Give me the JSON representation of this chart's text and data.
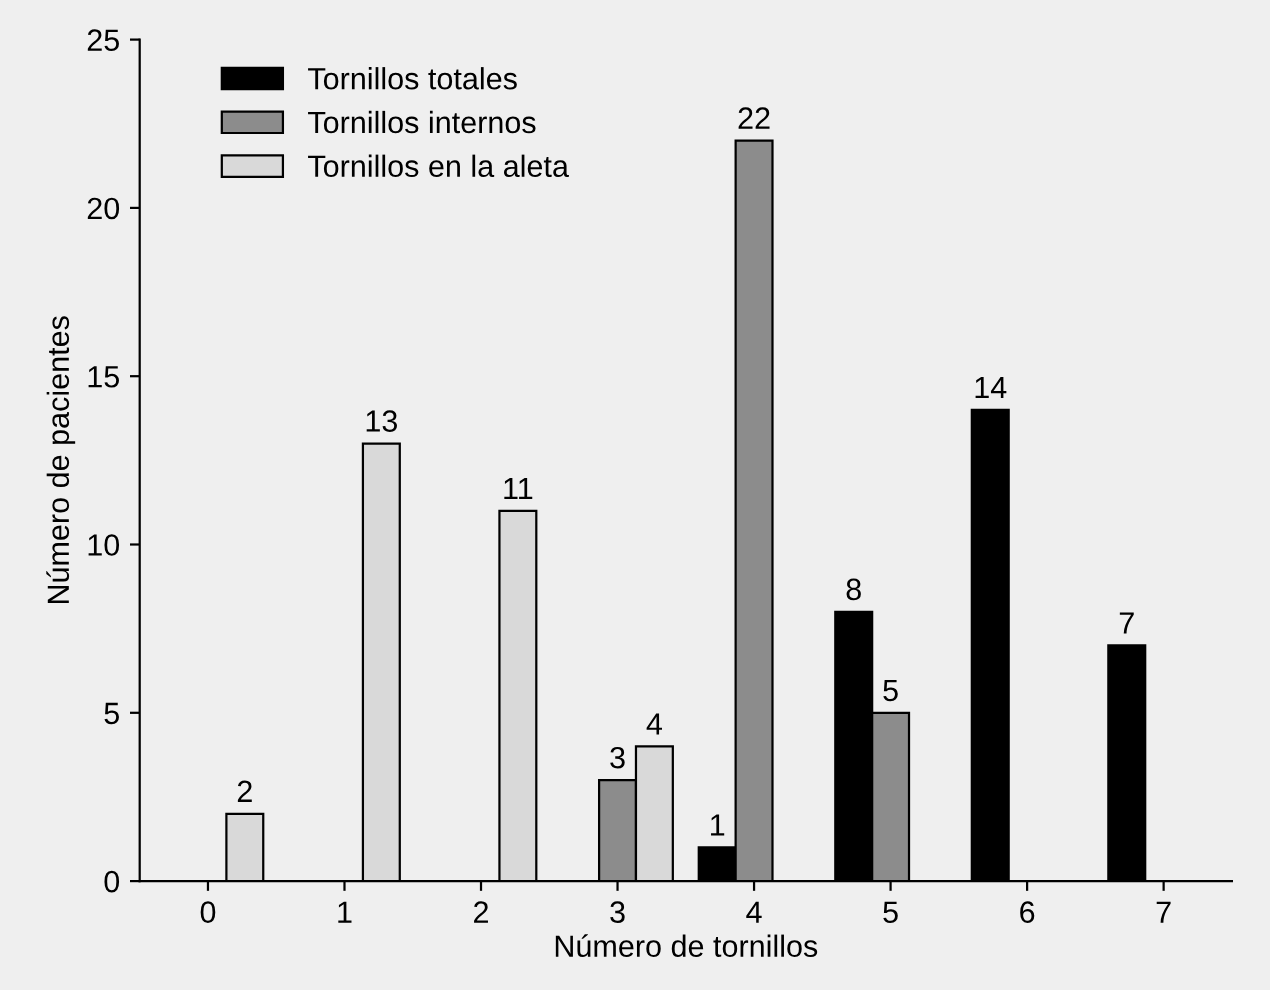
{
  "chart_data": {
    "type": "bar",
    "xlabel": "Número de tornillos",
    "ylabel": "Número de pacientes",
    "categories": [
      "0",
      "1",
      "2",
      "3",
      "4",
      "5",
      "6",
      "7"
    ],
    "series": [
      {
        "name": "Tornillos totales",
        "color": "#000000",
        "values": [
          null,
          null,
          null,
          null,
          1,
          8,
          14,
          7
        ]
      },
      {
        "name": "Tornillos internos",
        "color": "#8c8c8c",
        "values": [
          null,
          null,
          null,
          3,
          22,
          5,
          null,
          null
        ]
      },
      {
        "name": "Tornillos en la aleta",
        "color": "#d9d9d9",
        "values": [
          2,
          13,
          11,
          4,
          null,
          null,
          null,
          null
        ]
      }
    ],
    "ylim": [
      0,
      25
    ],
    "yticks": [
      0,
      5,
      10,
      15,
      20,
      25
    ],
    "grid": false,
    "legend": "top left",
    "data_labels": true
  }
}
